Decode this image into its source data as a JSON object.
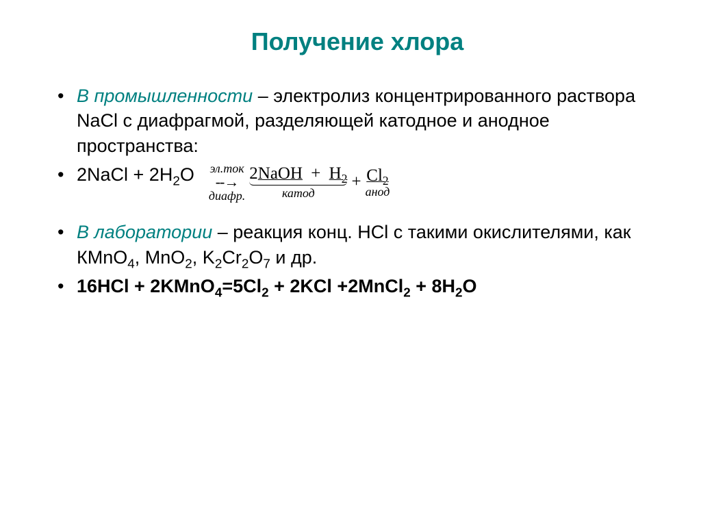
{
  "title": "Получение хлора",
  "colors": {
    "accent": "#008080",
    "text": "#000000",
    "background": "#ffffff"
  },
  "typography": {
    "title_fontsize": 36,
    "body_fontsize": 27,
    "eq_fontsize": 25,
    "label_fontsize": 18,
    "title_weight": "bold",
    "body_family": "Arial",
    "eq_family": "Times New Roman"
  },
  "bullets": {
    "industry": {
      "label": "В промышленности",
      "text_part1": " – электролиз концентрированного раствора NaCl с диафрагмой, разделяющей катодное и анодное пространства:"
    },
    "equation1": {
      "left": "2NaCl + 2H",
      "left_sub": "2",
      "left_tail": "O",
      "arrow_top": "эл.ток",
      "arrow_mid": "--→",
      "arrow_bot": "диафр.",
      "prod1_pre": "2",
      "prod1": "NaOH",
      "prod2_pre": "H",
      "prod2_sub": "2",
      "cathode_label": "катод",
      "plus": " + ",
      "prod3": "Cl",
      "prod3_sub": "2",
      "anode_label": "анод"
    },
    "lab": {
      "label": "В лаборатории",
      "text_part1": " – реакция конц. НСl с такими окислителями, как КМnO",
      "sub1": "4",
      "text_part2": ", MnO",
      "sub2": "2",
      "text_part3": ", K",
      "sub3": "2",
      "text_part4": "Cr",
      "sub4": "2",
      "text_part5": "O",
      "sub5": "7",
      "text_part6": " и др."
    },
    "equation2": {
      "p1": "16HCl + 2KMnO",
      "s1": "4",
      "p2": "=5Cl",
      "s2": "2",
      "p3": " + 2KCl +2MnCl",
      "s3": "2",
      "p4": " + 8H",
      "s4": "2",
      "p5": "O"
    }
  }
}
